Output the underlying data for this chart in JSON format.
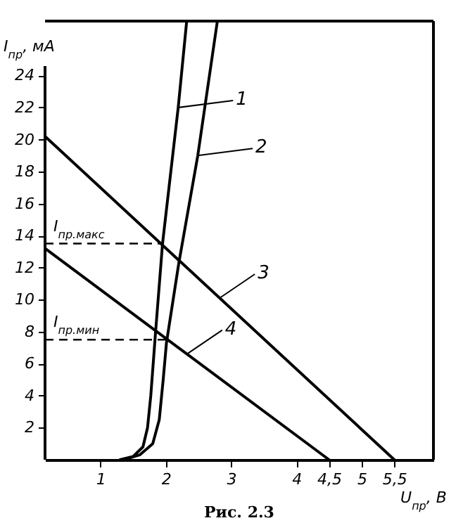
{
  "chart_data": {
    "type": "line",
    "xlabel": "U$_{пр}$, В",
    "ylabel": "I$_{пр}$, мА",
    "xlim": [
      0.15,
      6.1
    ],
    "ylim": [
      0,
      27.4
    ],
    "xticks": [
      1,
      2,
      3,
      4,
      {
        "value": 4.5,
        "label": "4,5"
      },
      5,
      {
        "value": 5.5,
        "label": "5,5"
      }
    ],
    "yticks": [
      2,
      4,
      6,
      8,
      10,
      12,
      14,
      16,
      18,
      20,
      22,
      24
    ],
    "grid": false,
    "legend": "right",
    "series": [
      {
        "name": "1",
        "color": "#000000",
        "x": [
          1.3,
          1.5,
          1.65,
          1.72,
          1.77,
          1.84,
          1.95,
          2.19,
          2.32
        ],
        "values": [
          0,
          0.2,
          0.8,
          2,
          4,
          7.8,
          13.5,
          22,
          27.4
        ]
      },
      {
        "name": "2",
        "color": "#000000",
        "x": [
          1.35,
          1.6,
          1.8,
          1.9,
          1.96,
          2.01,
          2.2,
          2.49,
          2.79
        ],
        "values": [
          0,
          0.3,
          1,
          2.5,
          5,
          7.3,
          12.3,
          19,
          27.4
        ]
      },
      {
        "name": "3",
        "color": "#000000",
        "x": [
          0.15,
          5.5
        ],
        "values": [
          20.2,
          0
        ]
      },
      {
        "name": "4",
        "color": "#000000",
        "x": [
          0.15,
          4.5
        ],
        "values": [
          13.2,
          0
        ]
      }
    ],
    "ref_lines": [
      {
        "axis": "y",
        "value": 13.5,
        "label": "I$_{пр.макс}$",
        "line_style": "dashed"
      },
      {
        "axis": "y",
        "value": 7.5,
        "label": "I$_{пр.мин}$",
        "line_style": "dashed"
      }
    ],
    "annotations": [
      "Рис. 2.3"
    ]
  }
}
